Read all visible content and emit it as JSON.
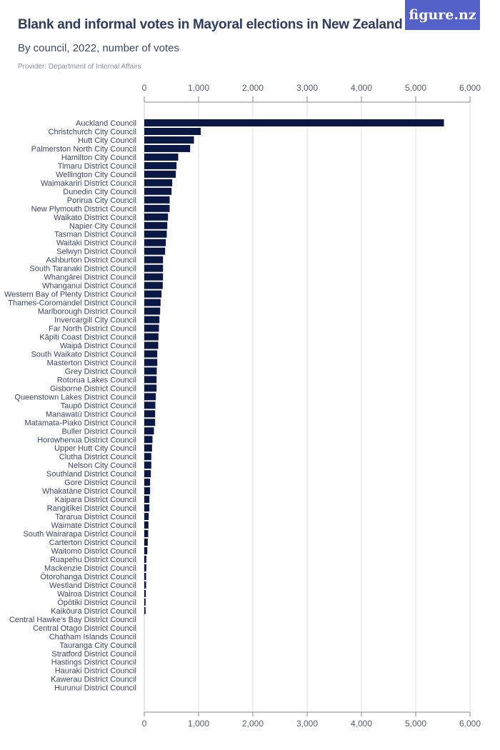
{
  "header": {
    "title": "Blank and informal votes in Mayoral elections in New Zealand",
    "subtitle": "By council, 2022, number of votes",
    "provider": "Provider: Department of Internal Affairs",
    "logo": "figure.nz",
    "logo_color": "#5461c8"
  },
  "chart_data": {
    "type": "bar",
    "orientation": "horizontal",
    "title": "Blank and informal votes in Mayoral elections in New Zealand",
    "subtitle": "By council, 2022, number of votes",
    "xlim": [
      0,
      6000
    ],
    "xticks": [
      0,
      1000,
      2000,
      3000,
      4000,
      5000,
      6000
    ],
    "xtick_labels": [
      "0",
      "1,000",
      "2,000",
      "3,000",
      "4,000",
      "5,000",
      "6,000"
    ],
    "axis_position": "top and bottom",
    "grid": true,
    "bar_color": "#0b1845",
    "categories": [
      "Auckland Council",
      "Christchurch City Council",
      "Hutt City Council",
      "Palmerston North City Council",
      "Hamilton City Council",
      "Timaru District Council",
      "Wellington City Council",
      "Waimakariri District Council",
      "Dunedin City Council",
      "Porirua City Council",
      "New Plymouth District Council",
      "Waikato District Council",
      "Napier City Council",
      "Tasman District Council",
      "Waitaki District Council",
      "Selwyn District Council",
      "Ashburton District Council",
      "South Taranaki District Council",
      "Whangārei District Council",
      "Whanganui District Council",
      "Western Bay of Plenty District Council",
      "Thames-Coromandel District Council",
      "Marlborough District Council",
      "Invercargill City Council",
      "Far North District Council",
      "Kāpiti Coast District Council",
      "Waipā District Council",
      "South Waikato District Council",
      "Masterton District Council",
      "Grey District Council",
      "Rotorua Lakes Council",
      "Gisborne District Council",
      "Queenstown Lakes District Council",
      "Taupō District Council",
      "Manawatū District Council",
      "Matamata-Piako District Council",
      "Buller District Council",
      "Horowhenua District Council",
      "Upper Hutt City Council",
      "Clutha District Council",
      "Nelson City Council",
      "Southland District Council",
      "Gore District Council",
      "Whakatāne District Council",
      "Kaipara District Council",
      "Rangitīkei District Council",
      "Tararua District Council",
      "Waimate District Council",
      "South Wairarapa District Council",
      "Carterton District Council",
      "Waitomo District Council",
      "Ruapehu District Council",
      "Mackenzie District Council",
      "Ōtorohanga District Council",
      "Westland District Council",
      "Wairoa District Council",
      "Ōpōtiki District Council",
      "Kaikōura District Council",
      "Central Hawke's Bay District Council",
      "Central Otago District Council",
      "Chatham Islands Council",
      "Tauranga City Council",
      "Stratford District Council",
      "Hastings District Council",
      "Hauraki District Council",
      "Kawerau District Council",
      "Hurunui District Council"
    ],
    "values": [
      5520,
      1040,
      915,
      845,
      625,
      594,
      581,
      515,
      502,
      467,
      467,
      437,
      424,
      414,
      397,
      384,
      345,
      345,
      345,
      340,
      318,
      300,
      292,
      279,
      270,
      261,
      257,
      239,
      239,
      230,
      226,
      226,
      213,
      204,
      200,
      200,
      178,
      151,
      143,
      129,
      129,
      121,
      107,
      107,
      94,
      94,
      81,
      77,
      72,
      64,
      55,
      37,
      37,
      33,
      33,
      29,
      24,
      24,
      0,
      0,
      0,
      0,
      0,
      0,
      0,
      0,
      0
    ]
  }
}
